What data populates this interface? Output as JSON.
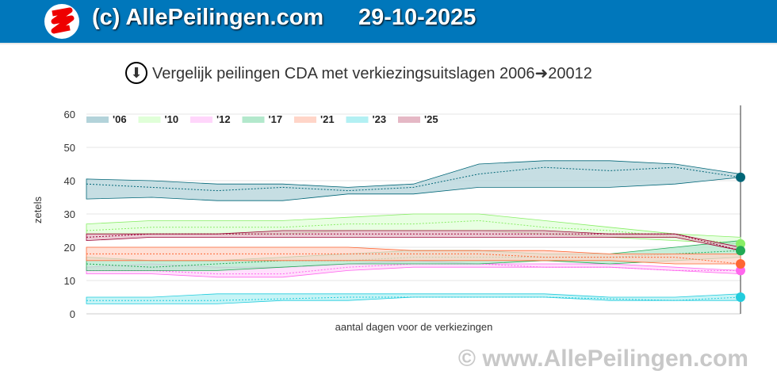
{
  "header": {
    "title": "(c) AllePeilingen.com",
    "date": "29-10-2025"
  },
  "subtitle": "Vergelijk peilingen CDA met verkiezingsuitslagen 2006➜20012",
  "watermark": "© www.AllePeilingen.com",
  "chart_data": {
    "type": "area",
    "title": "Vergelijk peilingen CDA met verkiezingsuitslagen 2006➜20012",
    "xlabel": "aantal dagen voor de verkiezingen",
    "ylabel": "zetels",
    "ylim": [
      0,
      60
    ],
    "yticks": [
      0,
      10,
      20,
      30,
      40,
      50,
      60
    ],
    "grid": true,
    "legend": "top-left",
    "x": [
      0,
      10,
      20,
      30,
      40,
      50,
      60,
      70,
      80,
      90,
      100
    ],
    "series": [
      {
        "name": "'06",
        "fill": "#b3d3da",
        "line": "#006677",
        "hi": [
          40.5,
          40,
          39,
          39,
          38,
          39,
          45,
          46,
          46,
          45,
          42
        ],
        "lo": [
          34.5,
          35,
          34,
          34,
          36,
          36,
          38,
          38,
          38,
          39,
          41
        ],
        "mid": [
          39,
          38,
          37,
          38,
          37,
          38,
          42,
          44,
          43,
          44,
          41
        ],
        "result": 41
      },
      {
        "name": "'10",
        "fill": "#e0ffd8",
        "line": "#88ee66",
        "hi": [
          27,
          28,
          28,
          28,
          29,
          30,
          30,
          28,
          26,
          24,
          23
        ],
        "lo": [
          24,
          24,
          24,
          24,
          25,
          25,
          25,
          24,
          23,
          22,
          21
        ],
        "mid": [
          25,
          26,
          26,
          26,
          27,
          27,
          28,
          26,
          25,
          23,
          21
        ],
        "result": 21
      },
      {
        "name": "'12",
        "fill": "#ffd6fb",
        "line": "#ff66ee",
        "hi": [
          14,
          15,
          14,
          14,
          15,
          16,
          15,
          15,
          15,
          14,
          13
        ],
        "lo": [
          12,
          12,
          11,
          11,
          13,
          14,
          14,
          14,
          14,
          13,
          12
        ],
        "mid": [
          13,
          13,
          12,
          12,
          14,
          15,
          15,
          14,
          14,
          13,
          13
        ],
        "result": 13
      },
      {
        "name": "'17",
        "fill": "#b3e8cc",
        "line": "#22aa55",
        "hi": [
          17,
          16,
          16,
          17,
          18,
          19,
          19,
          18,
          18,
          20,
          22
        ],
        "lo": [
          13,
          13,
          13,
          14,
          15,
          15,
          15,
          16,
          15,
          16,
          17
        ],
        "mid": [
          15,
          14,
          15,
          16,
          16,
          17,
          17,
          17,
          17,
          18,
          19
        ],
        "result": 19
      },
      {
        "name": "'21",
        "fill": "#ffd5c8",
        "line": "#ff6633",
        "hi": [
          20,
          20,
          20,
          20,
          20,
          19,
          19,
          19,
          18,
          18,
          18
        ],
        "lo": [
          16,
          16,
          16,
          16,
          16,
          16,
          16,
          16,
          16,
          15,
          15
        ],
        "mid": [
          18,
          18,
          18,
          18,
          18,
          18,
          18,
          17,
          17,
          17,
          15
        ],
        "result": 15
      },
      {
        "name": "'23",
        "fill": "#b3f0f3",
        "line": "#22ccdd",
        "hi": [
          5,
          5,
          6,
          6,
          6,
          6,
          6,
          6,
          5,
          5,
          6
        ],
        "lo": [
          3,
          3,
          3,
          4,
          4,
          5,
          5,
          5,
          4,
          4,
          4
        ],
        "mid": [
          4,
          4,
          4,
          4.5,
          5,
          5,
          5,
          5,
          4.5,
          4,
          5
        ],
        "result": 5
      },
      {
        "name": "'25",
        "fill": "#e5b8c5",
        "line": "#990033",
        "hi": [
          24,
          24,
          24,
          25,
          25,
          25,
          25,
          25,
          24,
          24,
          20
        ],
        "lo": [
          22,
          23,
          23,
          23,
          23,
          23,
          23,
          23,
          23,
          23,
          19
        ],
        "mid": [
          23,
          24,
          24,
          24,
          24,
          24,
          24,
          24,
          24,
          24,
          19
        ],
        "result": null
      }
    ]
  }
}
